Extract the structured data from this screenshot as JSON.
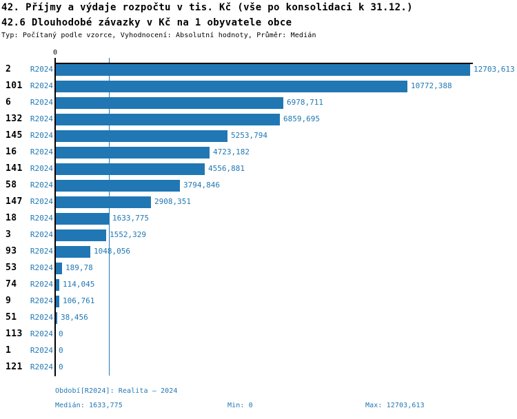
{
  "header": {
    "title": "42. Příjmy a výdaje rozpočtu v tis. Kč (vše po konsolidaci k 31.12.)",
    "subtitle": "42.6 Dlouhodobé závazky v Kč na 1 obyvatele obce",
    "meta": "Typ: Počítaný podle vzorce, Vyhodnocení: Absolutní hodnoty, Průměr: Medián"
  },
  "chart_data": {
    "type": "bar",
    "orientation": "horizontal",
    "title": "42.6 Dlouhodobé závazky v Kč na 1 obyvatele obce",
    "series_label": "R2024",
    "zero_tick_label": "0",
    "categories": [
      "2",
      "101",
      "6",
      "132",
      "145",
      "16",
      "141",
      "58",
      "147",
      "18",
      "3",
      "93",
      "53",
      "74",
      "9",
      "51",
      "113",
      "1",
      "121"
    ],
    "values": [
      12703.613,
      10772.388,
      6978.711,
      6859.695,
      5253.794,
      4723.182,
      4556.881,
      3794.846,
      2908.351,
      1633.775,
      1552.329,
      1048.056,
      189.78,
      114.045,
      106.761,
      38.456,
      0,
      0,
      0
    ],
    "value_labels": [
      "12703,613",
      "10772,388",
      "6978,711",
      "6859,695",
      "5253,794",
      "4723,182",
      "4556,881",
      "3794,846",
      "2908,351",
      "1633,775",
      "1552,329",
      "1048,056",
      "189,78",
      "114,045",
      "106,761",
      "38,456",
      "0",
      "0",
      "0"
    ],
    "xlim": [
      0,
      12703.613
    ],
    "median": 1633.775,
    "grid": false,
    "legend_position": "none",
    "bar_color": "#2077b4",
    "text_color": "#2077b4",
    "axis_color": "#000000"
  },
  "footer": {
    "period": "Období[R2024]: Realita – 2024",
    "median": "Medián: 1633,775",
    "min": "Min: 0",
    "max": "Max: 12703,613"
  }
}
